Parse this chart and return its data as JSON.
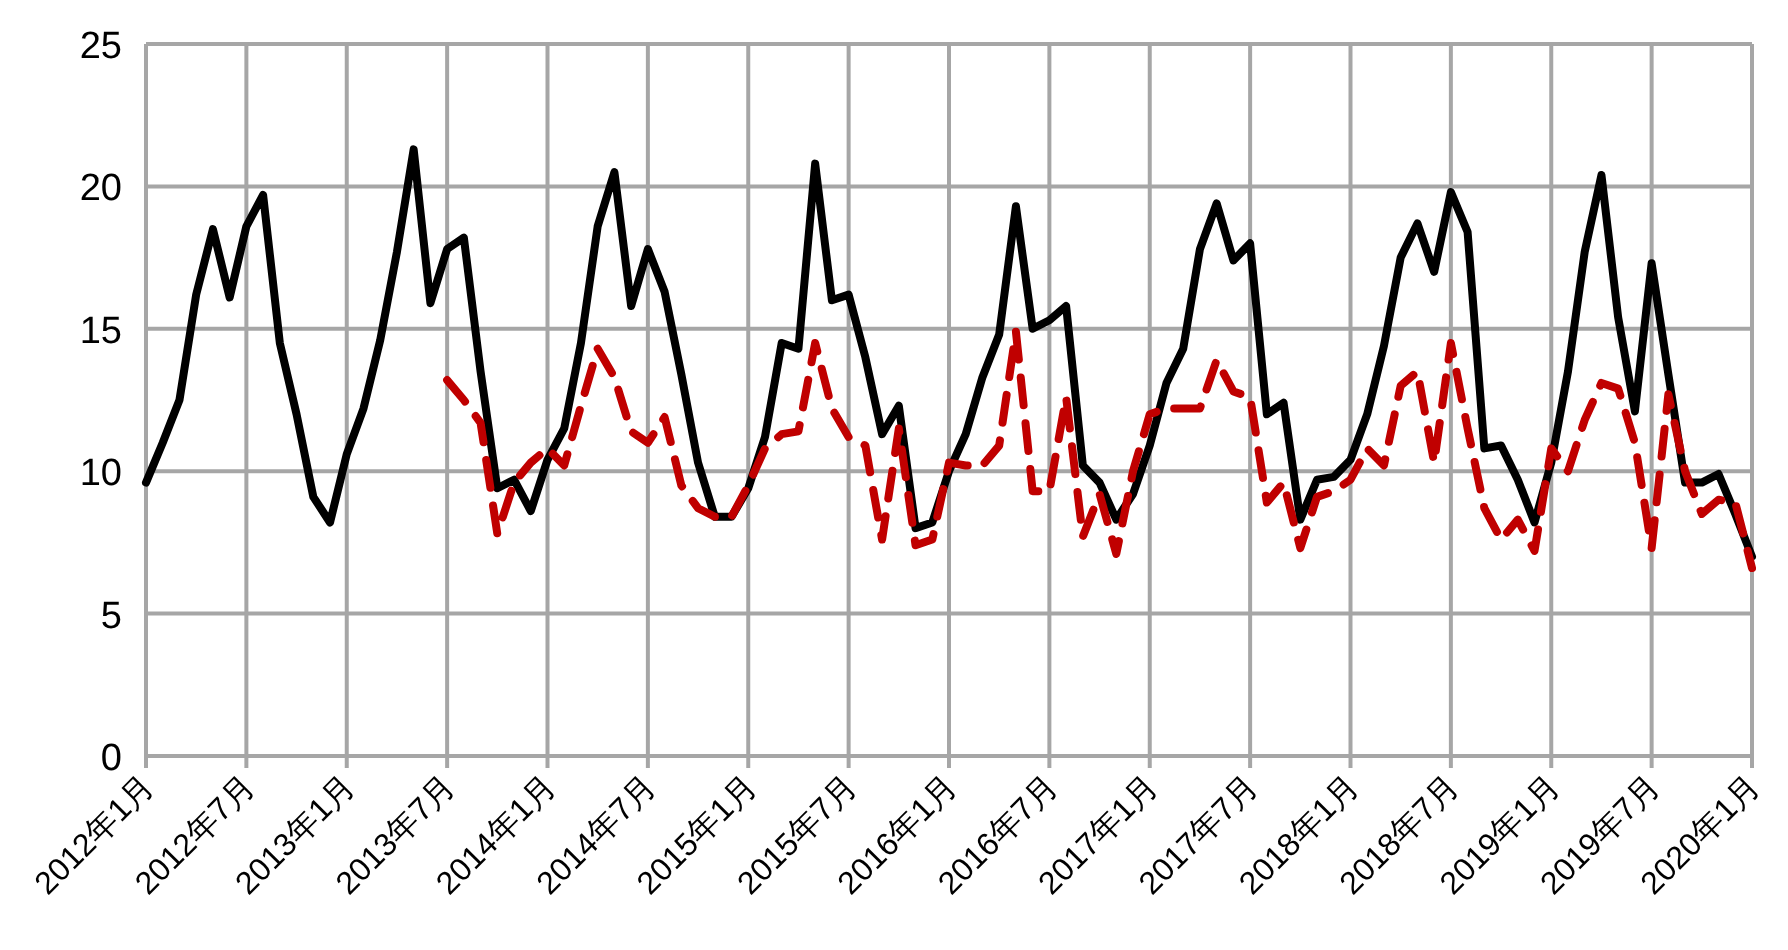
{
  "chart_data": {
    "type": "line",
    "categories": [
      "2012年1月",
      null,
      null,
      null,
      null,
      null,
      "2012年7月",
      null,
      null,
      null,
      null,
      null,
      "2013年1月",
      null,
      null,
      null,
      null,
      null,
      "2013年7月",
      null,
      null,
      null,
      null,
      null,
      "2014年1月",
      null,
      null,
      null,
      null,
      null,
      "2014年7月",
      null,
      null,
      null,
      null,
      null,
      "2015年1月",
      null,
      null,
      null,
      null,
      null,
      "2015年7月",
      null,
      null,
      null,
      null,
      null,
      "2016年1月",
      null,
      null,
      null,
      null,
      null,
      "2016年7月",
      null,
      null,
      null,
      null,
      null,
      "2017年1月",
      null,
      null,
      null,
      null,
      null,
      "2017年7月",
      null,
      null,
      null,
      null,
      null,
      "2018年1月",
      null,
      null,
      null,
      null,
      null,
      "2018年7月",
      null,
      null,
      null,
      null,
      null,
      "2019年1月",
      null,
      null,
      null,
      null,
      null,
      "2019年7月",
      null,
      null,
      null,
      null,
      null,
      "2020年1月"
    ],
    "series": [
      {
        "color": "#000000",
        "line_style": "solid",
        "values": [
          9.6,
          11,
          12.5,
          16.2,
          18.5,
          16.1,
          18.6,
          19.7,
          14.5,
          12,
          9.1,
          8.2,
          10.6,
          12.2,
          14.6,
          17.7,
          21.3,
          15.9,
          17.8,
          18.2,
          13.5,
          9.4,
          9.7,
          8.6,
          10.4,
          11.5,
          14.5,
          18.6,
          20.5,
          15.8,
          17.8,
          16.3,
          13.4,
          10.3,
          8.4,
          8.4,
          9.4,
          11.2,
          14.5,
          14.3,
          20.8,
          16,
          16.2,
          14,
          11.3,
          12.3,
          8,
          8.2,
          10,
          11.3,
          13.3,
          14.8,
          19.3,
          15,
          15.3,
          15.8,
          10.2,
          9.6,
          8.3,
          9.2,
          10.9,
          13.1,
          14.3,
          17.8,
          19.4,
          17.4,
          18,
          12,
          12.4,
          8.3,
          9.7,
          9.8,
          10.4,
          12,
          14.4,
          17.5,
          18.7,
          17,
          19.8,
          18.4,
          10.8,
          10.9,
          9.7,
          8.2,
          10.3,
          13.5,
          17.7,
          20.4,
          15.4,
          12.1,
          17.3,
          13.4,
          9.6,
          9.6,
          9.9,
          8.5,
          7
        ]
      },
      {
        "color": "#c00000",
        "line_style": "dashed",
        "values": [
          null,
          null,
          null,
          null,
          null,
          null,
          null,
          null,
          null,
          null,
          null,
          null,
          null,
          null,
          null,
          null,
          null,
          null,
          13.2,
          12.5,
          11.7,
          7.8,
          9.6,
          10.3,
          10.8,
          10.2,
          12.3,
          14.3,
          13.3,
          11.4,
          11,
          11.9,
          9.5,
          8.7,
          8.4,
          8.4,
          9.5,
          10.8,
          11.3,
          11.4,
          14.5,
          12.2,
          11.2,
          10.9,
          7.6,
          11.5,
          7.4,
          7.6,
          10.3,
          10.2,
          10.2,
          10.9,
          14.9,
          9.3,
          9.3,
          12.6,
          7.7,
          9.2,
          7.1,
          10,
          12,
          12.2,
          12.2,
          12.2,
          13.9,
          12.8,
          12.6,
          8.9,
          9.6,
          7.3,
          9.1,
          9.3,
          9.7,
          10.8,
          10.2,
          13,
          13.5,
          10.3,
          14.5,
          11.5,
          8.7,
          7.6,
          8.3,
          7.2,
          10.8,
          10,
          11.8,
          13.1,
          12.9,
          11,
          7.3,
          12.7,
          10,
          8.5,
          9,
          8.9,
          6.6
        ]
      }
    ],
    "ylim": [
      0,
      25
    ],
    "yticks": [
      0,
      5,
      10,
      15,
      20,
      25
    ],
    "grid": true
  }
}
